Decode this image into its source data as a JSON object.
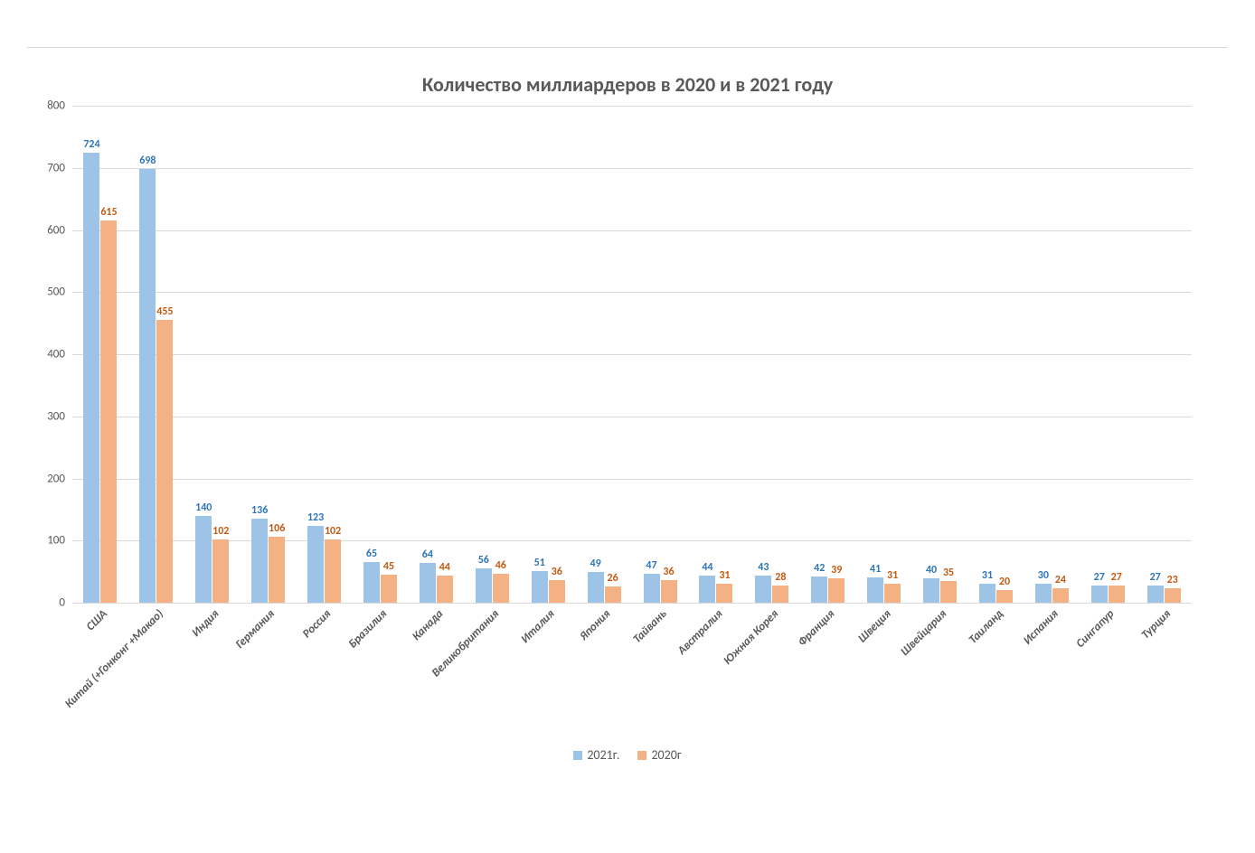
{
  "chart": {
    "type": "bar",
    "title": "Количество миллиардеров в 2020 и в 2021 году",
    "title_fontsize": 22,
    "title_color": "#595959",
    "background_color": "#ffffff",
    "grid_color": "#d9d9d9",
    "ylim": [
      0,
      800
    ],
    "ytick_step": 100,
    "yticks": [
      0,
      100,
      200,
      300,
      400,
      500,
      600,
      700,
      800
    ],
    "axis_label_color": "#595959",
    "axis_label_fontsize": 13,
    "xlabel_fontsize": 13,
    "xlabel_rotation": -45,
    "xlabel_fontstyle": "italic bold",
    "data_label_fontsize": 12,
    "bar_width": 0.42,
    "categories": [
      "США",
      "Китай (+Гонконг +Макао)",
      "Индия",
      "Германия",
      "Россия",
      "Бразилия",
      "Канада",
      "Великобритания",
      "Италия",
      "Япония",
      "Тайвань",
      "Австралия",
      "Южная Корея",
      "Франция",
      "Швеция",
      "Швейцария",
      "Таиланд",
      "Испания",
      "Сингапур",
      "Турция"
    ],
    "series": [
      {
        "name": "2021г.",
        "color": "#9dc3e6",
        "label_color": "#2e75b6",
        "values": [
          724,
          698,
          140,
          136,
          123,
          65,
          64,
          56,
          51,
          49,
          47,
          44,
          43,
          42,
          41,
          40,
          31,
          30,
          27,
          27
        ]
      },
      {
        "name": "2020г",
        "color": "#f4b183",
        "label_color": "#c55a11",
        "values": [
          615,
          455,
          102,
          106,
          102,
          45,
          44,
          46,
          36,
          26,
          36,
          31,
          28,
          39,
          31,
          35,
          20,
          24,
          27,
          23
        ]
      }
    ],
    "legend": {
      "position": "bottom",
      "items": [
        "2021г.",
        "2020г"
      ]
    }
  }
}
